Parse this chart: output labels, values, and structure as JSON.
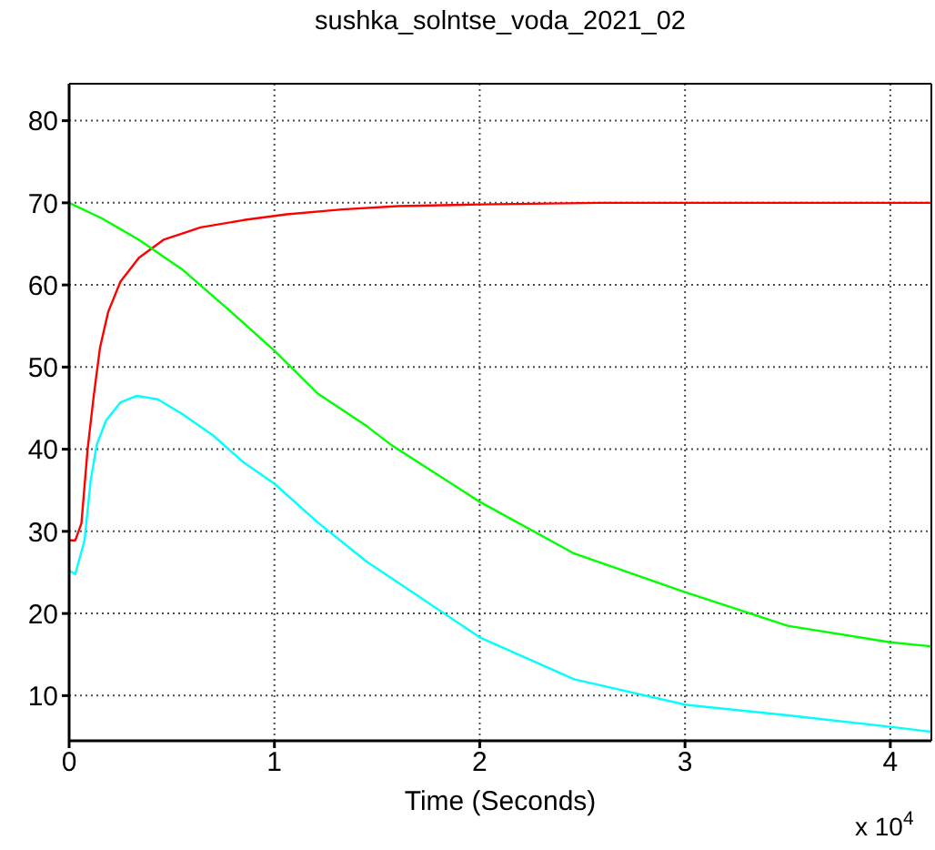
{
  "chart_data": {
    "type": "line",
    "title": "sushka_solntse_voda_2021_02",
    "xlabel": "Time (Seconds)",
    "annotations": [
      "x 10$^{4}$"
    ],
    "xlim": [
      0,
      4.2
    ],
    "xticks": [
      0,
      1,
      2,
      3,
      4
    ],
    "ylim": [
      4.5,
      84.5
    ],
    "yticks": [
      10,
      20,
      30,
      40,
      50,
      60,
      70,
      80
    ],
    "grid": true,
    "marker": "none",
    "line_style": "solid",
    "series": [
      {
        "color": "#ff0000",
        "x": [
          0,
          0.03,
          0.06,
          0.09,
          0.12,
          0.15,
          0.19,
          0.25,
          0.34,
          0.46,
          0.64,
          0.85,
          1.06,
          1.33,
          1.6,
          2.0,
          2.58,
          4.2
        ],
        "values": [
          28.9,
          28.9,
          31,
          40,
          46.5,
          52.3,
          56.7,
          60.4,
          63.3,
          65.5,
          67,
          67.9,
          68.6,
          69.2,
          69.6,
          69.8,
          70,
          70
        ]
      },
      {
        "color": "#00ff00",
        "x": [
          0,
          0.16,
          0.34,
          0.55,
          0.79,
          1.0,
          1.21,
          1.45,
          1.57,
          2.0,
          2.46,
          3.0,
          3.5,
          4.0,
          4.2
        ],
        "values": [
          70,
          68.1,
          65.5,
          61.9,
          56.7,
          52,
          46.8,
          42.8,
          40.5,
          33.6,
          27.3,
          22.6,
          18.5,
          16.5,
          16
        ]
      },
      {
        "color": "#00ffff",
        "x": [
          0,
          0.03,
          0.075,
          0.105,
          0.135,
          0.18,
          0.25,
          0.33,
          0.43,
          0.55,
          0.7,
          0.85,
          1.0,
          1.21,
          1.45,
          1.57,
          2.0,
          2.46,
          3.0,
          3.5,
          4.0,
          4.2
        ],
        "values": [
          25.2,
          24.8,
          28.9,
          36.2,
          40.6,
          43.5,
          45.7,
          46.5,
          46.1,
          44.3,
          41.7,
          38.4,
          35.8,
          31.1,
          26.3,
          24.3,
          17.1,
          12,
          8.9,
          7.6,
          6.2,
          5.6
        ]
      }
    ]
  }
}
